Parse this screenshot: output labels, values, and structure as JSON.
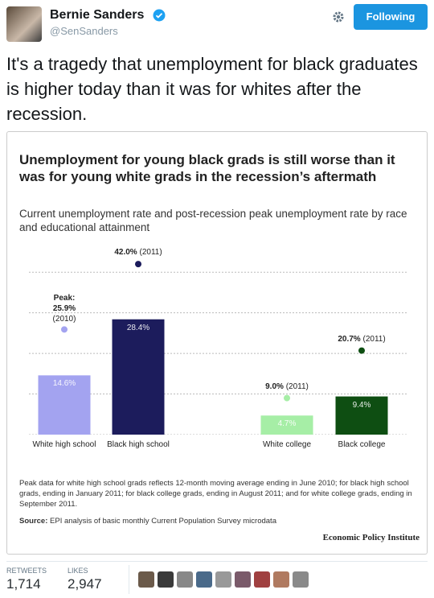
{
  "tweet": {
    "name": "Bernie Sanders",
    "handle": "@SenSanders",
    "button": "Following",
    "text": "It's a tragedy that unemployment for black graduates is higher today than it was for whites after the recession.",
    "retweets_label": "RETWEETS",
    "retweets": "1,714",
    "likes_label": "LIKES",
    "likes": "2,947"
  },
  "chart_data": {
    "type": "bar",
    "title": "Unemployment for young black grads is still worse than it was for young white grads in the recession’s aftermath",
    "subtitle": "Current unemployment rate and post-recession peak unemployment rate by race and educational attainment",
    "categories": [
      "White high school",
      "Black high school",
      "White college",
      "Black college"
    ],
    "values": [
      14.6,
      28.4,
      4.7,
      9.4
    ],
    "value_labels": [
      "14.6%",
      "28.4%",
      "4.7%",
      "9.4%"
    ],
    "colors": [
      "#a3a3f0",
      "#1c1c5c",
      "#a6eea6",
      "#0e4e12"
    ],
    "peak": {
      "annotation": "Peak:",
      "values": [
        25.9,
        42.0,
        9.0,
        20.7
      ],
      "value_labels": [
        "25.9%",
        "42.0%",
        "9.0%",
        "20.7%"
      ],
      "years": [
        "(2010)",
        "(2011)",
        "(2011)",
        "(2011)"
      ],
      "colors": [
        "#a3a3f0",
        "#1c1c5c",
        "#a6eea6",
        "#0e4e12"
      ]
    },
    "ylim": [
      0,
      45
    ],
    "yticks": [
      0,
      10,
      20,
      30,
      40
    ],
    "grid": true,
    "footnote": "Peak data for white high school grads reflects 12-month moving average ending in June 2010; for black high school grads, ending in January 2011; for black college grads, ending in August 2011; and for white college grads, ending in September 2011.",
    "source_label": "Source:",
    "source": "EPI analysis of basic monthly Current Population Survey microdata",
    "credit": "Economic Policy Institute"
  }
}
